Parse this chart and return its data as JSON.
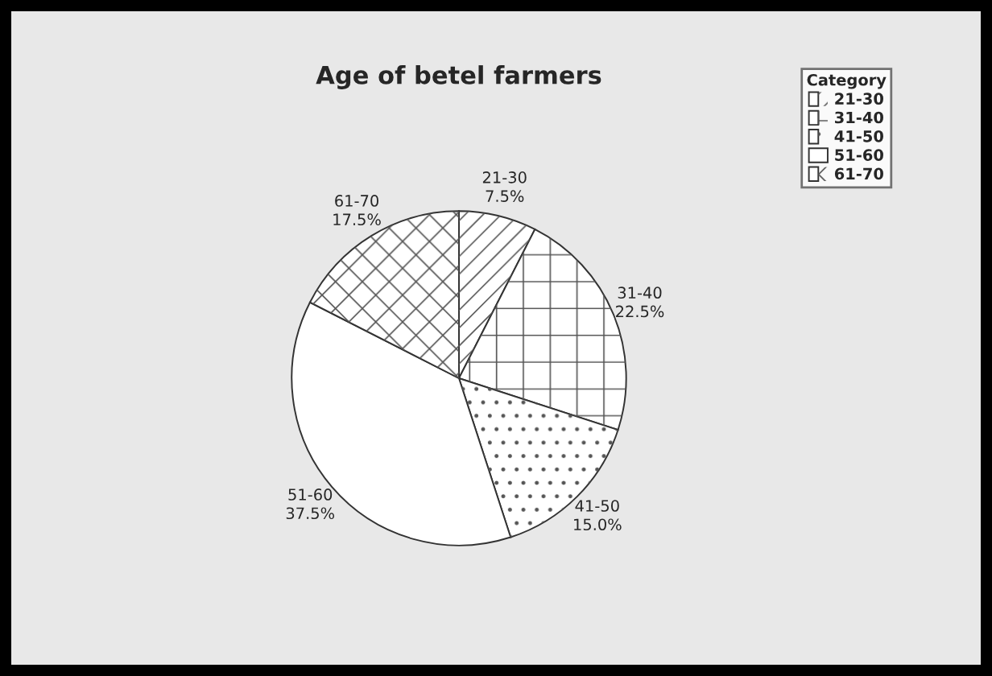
{
  "chart_data": {
    "type": "pie",
    "title": "Age of betel farmers",
    "categories": [
      "21-30",
      "31-40",
      "41-50",
      "51-60",
      "61-70"
    ],
    "values": [
      7.5,
      22.5,
      15.0,
      37.5,
      17.5
    ],
    "value_labels": [
      "7.5%",
      "22.5%",
      "15.0%",
      "37.5%",
      "17.5%"
    ],
    "colors": [
      "#ffffff",
      "#ffffff",
      "#ffffff",
      "#ffffff",
      "#ffffff"
    ],
    "legend": "top right",
    "legend_title": "Category"
  }
}
